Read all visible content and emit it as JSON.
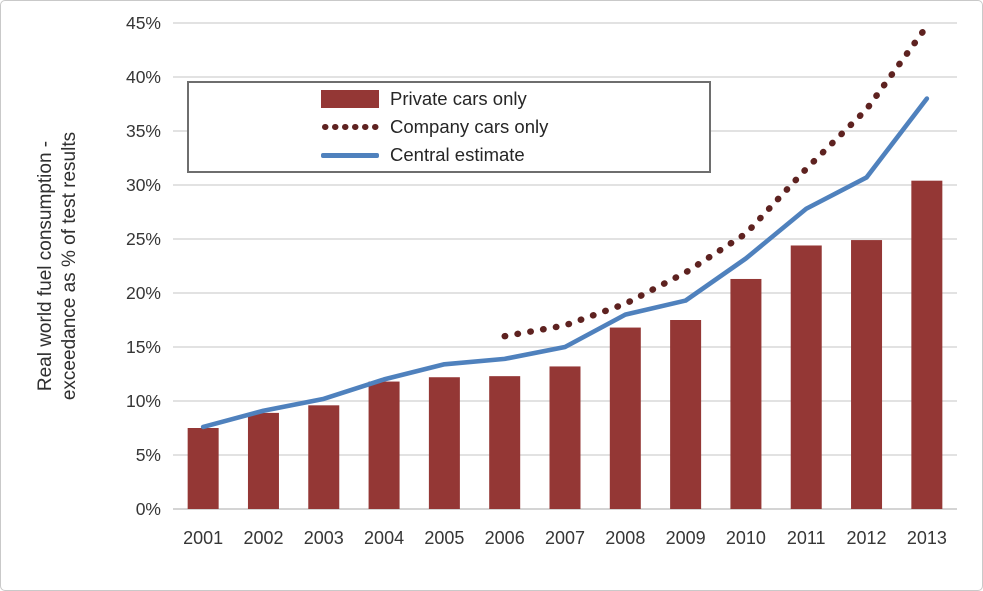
{
  "chart_data": {
    "type": "bar",
    "subtype": "combo-bar-and-lines",
    "title": "",
    "ylabel_line1": "Real world fuel consumption -",
    "ylabel_line2": "exceedance as % of test results",
    "xlabel": "",
    "ylim": [
      0,
      45
    ],
    "y_tick_step": 5,
    "y_ticks": [
      "0%",
      "5%",
      "10%",
      "15%",
      "20%",
      "25%",
      "30%",
      "35%",
      "40%",
      "45%"
    ],
    "grid": true,
    "legend_position": "inside-top-left",
    "categories": [
      "2001",
      "2002",
      "2003",
      "2004",
      "2005",
      "2006",
      "2007",
      "2008",
      "2009",
      "2010",
      "2011",
      "2012",
      "2013"
    ],
    "series": [
      {
        "name": "Private cars only",
        "type": "bar",
        "color": "#943735",
        "values": [
          7.5,
          8.9,
          9.6,
          11.8,
          12.2,
          12.3,
          13.2,
          16.8,
          17.5,
          21.3,
          24.4,
          24.9,
          30.4
        ]
      },
      {
        "name": "Company cars only",
        "type": "dotted-line",
        "color": "#5e2220",
        "values": [
          null,
          null,
          null,
          null,
          null,
          16.0,
          17.0,
          19.0,
          21.9,
          25.5,
          31.5,
          37.0,
          44.7
        ]
      },
      {
        "name": "Central estimate",
        "type": "line",
        "color": "#4f81bd",
        "values": [
          7.6,
          9.1,
          10.2,
          12.0,
          13.4,
          13.9,
          15.0,
          18.0,
          19.3,
          23.2,
          27.8,
          30.7,
          38.0
        ]
      }
    ],
    "colors": {
      "gridline": "#d9d9d9",
      "baseline": "#c6c6c6",
      "tick_text": "#363636",
      "axis_title_text": "#2f2f2f",
      "legend_border": "#6e6e6e"
    }
  }
}
